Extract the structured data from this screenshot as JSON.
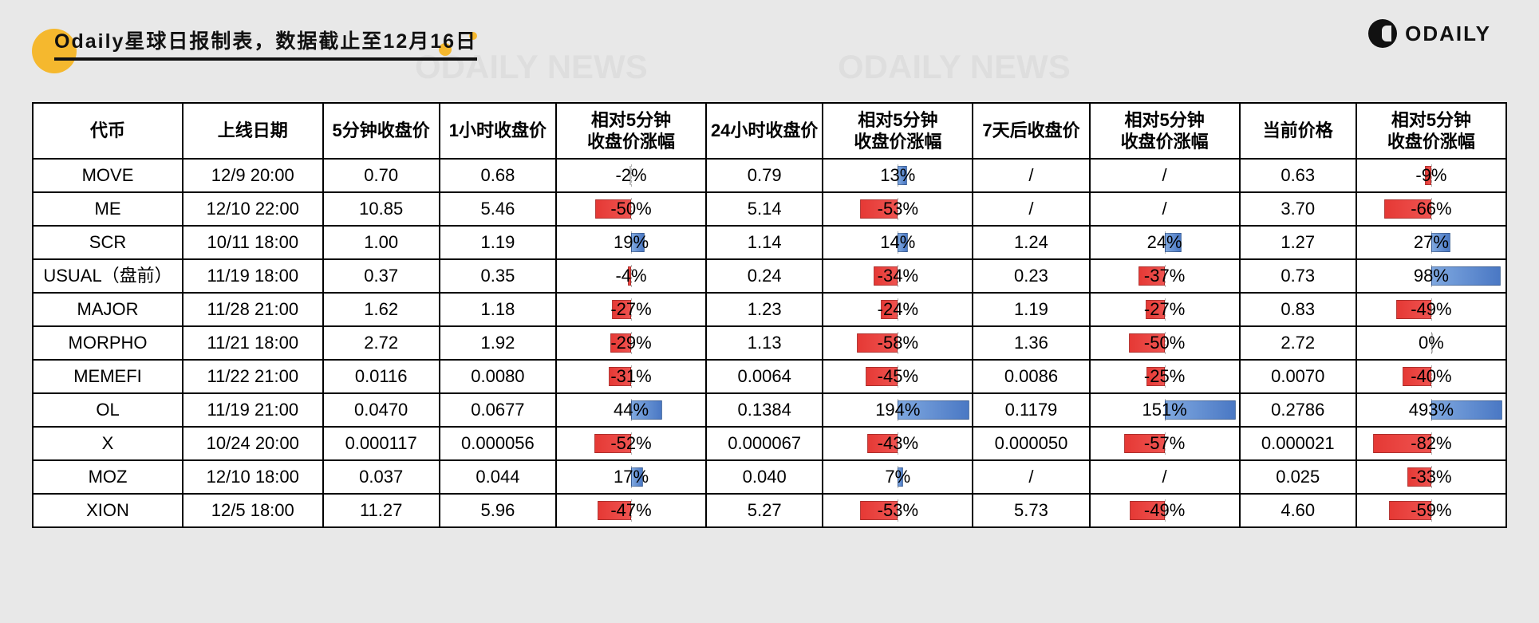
{
  "header": {
    "title": "Odaily星球日报制表，数据截止至12月16日",
    "brand": "ODAILY"
  },
  "colors": {
    "accent": "#f5b82e",
    "neg_bar_from": "#e53935",
    "neg_bar_to": "#ef5350",
    "pos_bar_from": "#7fa8e0",
    "pos_bar_to": "#4a78c4",
    "background": "#e8e8e8",
    "border": "#000000"
  },
  "watermark_text": "ODAILY NEWS",
  "table": {
    "type": "table",
    "bar_scale_pct": 100,
    "columns": [
      "代币",
      "上线日期",
      "5分钟收盘价",
      "1小时收盘价",
      "相对5分钟\n收盘价涨幅",
      "24小时收盘价",
      "相对5分钟\n收盘价涨幅",
      "7天后收盘价",
      "相对5分钟\n收盘价涨幅",
      "当前价格",
      "相对5分钟\n收盘价涨幅"
    ],
    "column_types": [
      "text",
      "text",
      "num",
      "num",
      "pct",
      "num",
      "pct",
      "num",
      "pct",
      "num",
      "pct"
    ],
    "rows": [
      {
        "token": "MOVE",
        "date": "12/9 20:00",
        "p5m": "0.70",
        "p1h": "0.68",
        "pct1h": -2,
        "p24h": "0.79",
        "pct24h": 13,
        "p7d": "/",
        "pct7d": null,
        "cur": "0.63",
        "pctcur": -9
      },
      {
        "token": "ME",
        "date": "12/10 22:00",
        "p5m": "10.85",
        "p1h": "5.46",
        "pct1h": -50,
        "p24h": "5.14",
        "pct24h": -53,
        "p7d": "/",
        "pct7d": null,
        "cur": "3.70",
        "pctcur": -66
      },
      {
        "token": "SCR",
        "date": "10/11 18:00",
        "p5m": "1.00",
        "p1h": "1.19",
        "pct1h": 19,
        "p24h": "1.14",
        "pct24h": 14,
        "p7d": "1.24",
        "pct7d": 24,
        "cur": "1.27",
        "pctcur": 27
      },
      {
        "token": "USUAL（盘前）",
        "date": "11/19 18:00",
        "p5m": "0.37",
        "p1h": "0.35",
        "pct1h": -4,
        "p24h": "0.24",
        "pct24h": -34,
        "p7d": "0.23",
        "pct7d": -37,
        "cur": "0.73",
        "pctcur": 98
      },
      {
        "token": "MAJOR",
        "date": "11/28 21:00",
        "p5m": "1.62",
        "p1h": "1.18",
        "pct1h": -27,
        "p24h": "1.23",
        "pct24h": -24,
        "p7d": "1.19",
        "pct7d": -27,
        "cur": "0.83",
        "pctcur": -49
      },
      {
        "token": "MORPHO",
        "date": "11/21 18:00",
        "p5m": "2.72",
        "p1h": "1.92",
        "pct1h": -29,
        "p24h": "1.13",
        "pct24h": -58,
        "p7d": "1.36",
        "pct7d": -50,
        "cur": "2.72",
        "pctcur": 0
      },
      {
        "token": "MEMEFI",
        "date": "11/22 21:00",
        "p5m": "0.0116",
        "p1h": "0.0080",
        "pct1h": -31,
        "p24h": "0.0064",
        "pct24h": -45,
        "p7d": "0.0086",
        "pct7d": -25,
        "cur": "0.0070",
        "pctcur": -40
      },
      {
        "token": "OL",
        "date": "11/19 21:00",
        "p5m": "0.0470",
        "p1h": "0.0677",
        "pct1h": 44,
        "p24h": "0.1384",
        "pct24h": 194,
        "p7d": "0.1179",
        "pct7d": 151,
        "cur": "0.2786",
        "pctcur": 493
      },
      {
        "token": "X",
        "date": "10/24 20:00",
        "p5m": "0.000117",
        "p1h": "0.000056",
        "pct1h": -52,
        "p24h": "0.000067",
        "pct24h": -43,
        "p7d": "0.000050",
        "pct7d": -57,
        "cur": "0.000021",
        "pctcur": -82
      },
      {
        "token": "MOZ",
        "date": "12/10 18:00",
        "p5m": "0.037",
        "p1h": "0.044",
        "pct1h": 17,
        "p24h": "0.040",
        "pct24h": 7,
        "p7d": "/",
        "pct7d": null,
        "cur": "0.025",
        "pctcur": -33
      },
      {
        "token": "XION",
        "date": "12/5 18:00",
        "p5m": "11.27",
        "p1h": "5.96",
        "pct1h": -47,
        "p24h": "5.27",
        "pct24h": -53,
        "p7d": "5.73",
        "pct7d": -49,
        "cur": "4.60",
        "pctcur": -59
      }
    ]
  }
}
